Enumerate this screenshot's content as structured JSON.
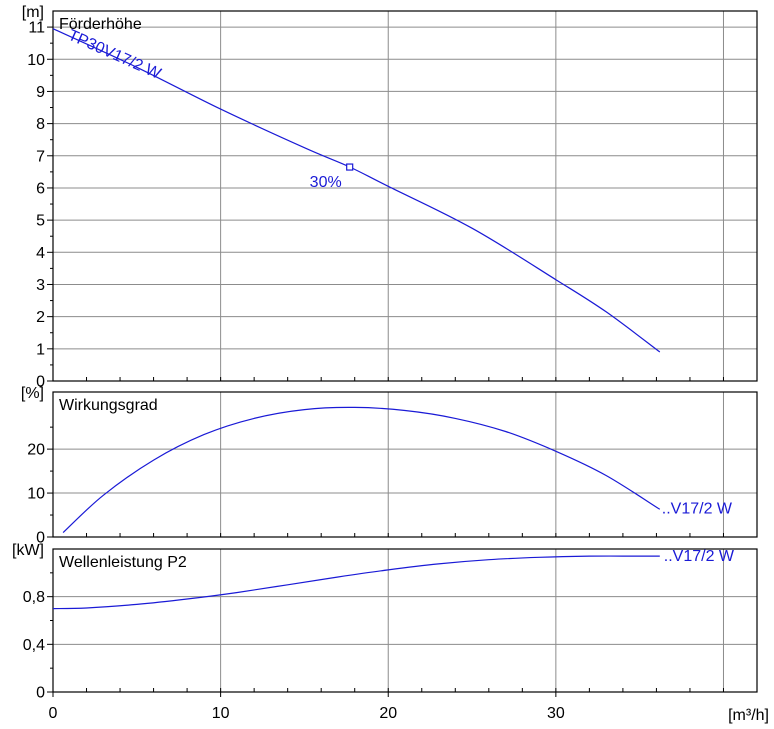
{
  "chart_data": [
    {
      "type": "line",
      "title": "Förderhöhe",
      "ylabel": "[m]",
      "xlim": [
        0,
        42
      ],
      "ylim": [
        0,
        11.5
      ],
      "yticks": [
        0,
        1,
        2,
        3,
        4,
        5,
        6,
        7,
        8,
        9,
        10,
        11
      ],
      "grid": true,
      "curve_label": "TP30V17/2 W",
      "color": "#1a1ad6",
      "series": [
        {
          "x": [
            0,
            5,
            10,
            15,
            17.7,
            20,
            25,
            30,
            33,
            36.2
          ],
          "values": [
            10.95,
            9.75,
            8.45,
            7.25,
            6.65,
            6.05,
            4.75,
            3.15,
            2.15,
            0.9
          ]
        }
      ],
      "operating_point": {
        "x": 17.7,
        "y": 6.65,
        "label": "30%"
      }
    },
    {
      "type": "line",
      "title": "Wirkungsgrad",
      "ylabel": "[%]",
      "xlim": [
        0,
        42
      ],
      "ylim": [
        0,
        33
      ],
      "yticks": [
        0,
        10,
        20
      ],
      "grid": true,
      "curve_label": "..V17/2 W",
      "color": "#1a1ad6",
      "series": [
        {
          "x": [
            0.6,
            3,
            6,
            9,
            12,
            15,
            18,
            21,
            24,
            27,
            30,
            33,
            36.2
          ],
          "values": [
            1,
            9.5,
            17.5,
            23.3,
            27,
            29,
            29.5,
            28.8,
            27,
            24,
            19.5,
            14,
            6.3
          ]
        }
      ]
    },
    {
      "type": "line",
      "title": "Wellenleistung P2",
      "ylabel": "[kW]",
      "xlabel": "[m³/h]",
      "xlim": [
        0,
        42
      ],
      "ylim": [
        0,
        1.2
      ],
      "yticks": [
        0,
        0.4,
        0.8
      ],
      "ytick_labels": [
        "0",
        "0,4",
        "0,8"
      ],
      "xticks": [
        0,
        10,
        20,
        30
      ],
      "grid": true,
      "curve_label": "..V17/2 W",
      "color": "#1a1ad6",
      "series": [
        {
          "x": [
            0,
            2,
            5,
            8,
            11,
            14,
            17,
            20,
            23,
            26,
            29,
            32,
            34,
            36.2
          ],
          "values": [
            0.7,
            0.705,
            0.735,
            0.78,
            0.835,
            0.9,
            0.965,
            1.025,
            1.075,
            1.11,
            1.13,
            1.14,
            1.14,
            1.14
          ]
        }
      ]
    }
  ]
}
